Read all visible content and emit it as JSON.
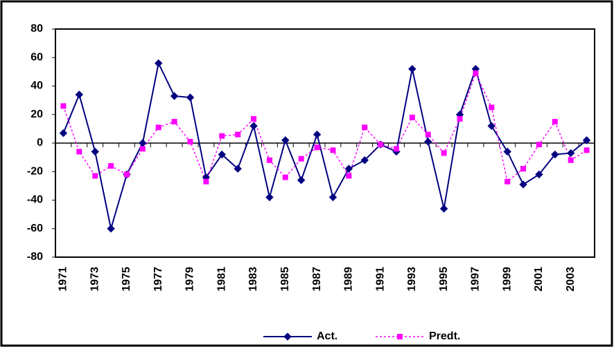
{
  "chart_data": {
    "type": "line",
    "categories": [
      "1971",
      null,
      "1973",
      null,
      "1975",
      null,
      "1977",
      null,
      "1979",
      null,
      "1981",
      null,
      "1983",
      null,
      "1985",
      null,
      "1987",
      null,
      "1989",
      null,
      "1991",
      null,
      "1993",
      null,
      "1995",
      null,
      "1997",
      null,
      "1999",
      null,
      "2001",
      null,
      "2003",
      null
    ],
    "series": [
      {
        "name": "Act.",
        "color": "#000080",
        "marker": "diamond",
        "dash": "solid",
        "values": [
          7,
          34,
          -6,
          -60,
          -22,
          0,
          56,
          33,
          32,
          -24,
          -8,
          -18,
          12,
          -38,
          2,
          -26,
          6,
          -38,
          -18,
          -12,
          -1,
          -6,
          52,
          1,
          -46,
          20,
          52,
          12,
          -6,
          -29,
          -22,
          -8,
          -7,
          2
        ]
      },
      {
        "name": "Predt.",
        "color": "#ff00ff",
        "marker": "square",
        "dash": "dotted",
        "values": [
          26,
          -6,
          -23,
          -16,
          -22,
          -4,
          11,
          15,
          1,
          -27,
          5,
          6,
          17,
          -12,
          -24,
          -11,
          -3,
          -5,
          -23,
          11,
          -1,
          -4,
          18,
          6,
          -7,
          17,
          49,
          25,
          -27,
          -18,
          -1,
          15,
          -12,
          -5
        ]
      }
    ],
    "ylim": [
      -80,
      80
    ],
    "yticks": [
      -80,
      -60,
      -40,
      -20,
      0,
      20,
      40,
      60,
      80
    ],
    "grid": false,
    "legend": "bottom"
  }
}
